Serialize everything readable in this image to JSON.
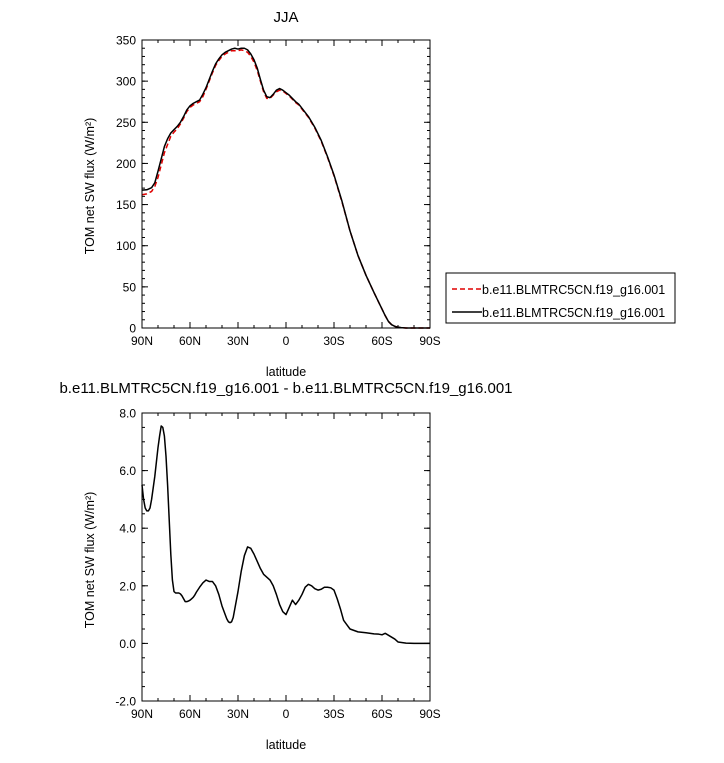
{
  "chart_data": [
    {
      "type": "line",
      "title": "JJA",
      "xlabel": "latitude",
      "ylabel": "TOM net SW flux (W/m²)",
      "xlim": [
        90,
        -90
      ],
      "ylim": [
        0,
        350
      ],
      "x_ticks": [
        90,
        60,
        30,
        0,
        -30,
        -60,
        -90
      ],
      "x_tick_labels": [
        "90N",
        "60N",
        "30N",
        "0",
        "30S",
        "60S",
        "90S"
      ],
      "y_ticks": [
        0,
        50,
        100,
        150,
        200,
        250,
        300,
        350
      ],
      "y_tick_labels": [
        "0",
        "50",
        "100",
        "150",
        "200",
        "250",
        "300",
        "350"
      ],
      "legend_position": "right",
      "series": [
        {
          "name": "b.e11.BLMTRC5CN.f19_g16.001",
          "color": "#e00000",
          "dash": "dashed",
          "x": [
            90,
            87,
            84,
            82,
            80,
            78,
            76,
            74,
            72,
            70,
            68,
            66,
            64,
            62,
            60,
            58,
            56,
            54,
            52,
            50,
            48,
            46,
            44,
            42,
            40,
            38,
            36,
            34,
            32,
            30,
            28,
            26,
            24,
            22,
            20,
            18,
            16,
            14,
            12,
            10,
            8,
            6,
            4,
            2,
            0,
            -2,
            -4,
            -6,
            -8,
            -10,
            -14,
            -18,
            -22,
            -26,
            -30,
            -35,
            -40,
            -45,
            -50,
            -55,
            -60,
            -62,
            -64,
            -66,
            -68,
            -70,
            -72,
            -75,
            -80,
            -85,
            -90
          ],
          "y": [
            162,
            163,
            166,
            172,
            183,
            198,
            213,
            223,
            233,
            238,
            242,
            248,
            255,
            263,
            268,
            271,
            273,
            275,
            281,
            290,
            300,
            310,
            319,
            325,
            330,
            333,
            335,
            337,
            337,
            337,
            338,
            337,
            335,
            330,
            323,
            313,
            300,
            287,
            279,
            279,
            283,
            287,
            289,
            288,
            285,
            282,
            278,
            274,
            271,
            266,
            256,
            243,
            227,
            207,
            185,
            153,
            118,
            88,
            64,
            43,
            23,
            15,
            8,
            4,
            2,
            1,
            0.5,
            0,
            0,
            0,
            0
          ]
        },
        {
          "name": "b.e11.BLMTRC5CN.f19_g16.001",
          "color": "#000000",
          "dash": "solid",
          "x": [
            90,
            87,
            84,
            82,
            80,
            78,
            76,
            74,
            72,
            70,
            68,
            66,
            64,
            62,
            60,
            58,
            56,
            54,
            52,
            50,
            48,
            46,
            44,
            42,
            40,
            38,
            36,
            34,
            32,
            30,
            28,
            26,
            24,
            22,
            20,
            18,
            16,
            14,
            12,
            10,
            8,
            6,
            4,
            2,
            0,
            -2,
            -4,
            -6,
            -8,
            -10,
            -14,
            -18,
            -22,
            -26,
            -30,
            -35,
            -40,
            -45,
            -50,
            -55,
            -60,
            -62,
            -64,
            -66,
            -68,
            -70,
            -72,
            -75,
            -80,
            -85,
            -90
          ],
          "y": [
            167.5,
            168,
            170.5,
            176.5,
            190.5,
            205.5,
            220.5,
            230,
            237,
            241,
            245,
            250,
            257,
            265,
            270,
            273,
            275,
            277,
            284,
            292,
            302,
            312,
            321,
            327,
            332,
            335,
            337,
            339,
            340,
            339,
            340,
            340,
            338,
            333,
            326,
            316,
            302,
            289,
            281,
            280,
            284,
            289,
            291,
            289,
            286,
            283,
            279,
            275,
            272,
            267,
            257,
            244,
            228,
            208,
            186,
            154,
            118,
            88,
            64,
            43,
            23,
            15,
            8,
            4,
            2,
            1,
            0.5,
            0,
            0,
            0,
            0
          ]
        }
      ]
    },
    {
      "type": "line",
      "title": "b.e11.BLMTRC5CN.f19_g16.001 - b.e11.BLMTRC5CN.f19_g16.001",
      "xlabel": "latitude",
      "ylabel": "TOM net SW flux (W/m²)",
      "xlim": [
        90,
        -90
      ],
      "ylim": [
        -2.0,
        8.0
      ],
      "x_ticks": [
        90,
        60,
        30,
        0,
        -30,
        -60,
        -90
      ],
      "x_tick_labels": [
        "90N",
        "60N",
        "30N",
        "0",
        "30S",
        "60S",
        "90S"
      ],
      "y_ticks": [
        -2.0,
        0.0,
        2.0,
        4.0,
        6.0,
        8.0
      ],
      "y_tick_labels": [
        "-2.0",
        "0.0",
        "2.0",
        "4.0",
        "6.0",
        "8.0"
      ],
      "series": [
        {
          "color": "#000000",
          "dash": "solid",
          "x": [
            90,
            89,
            88,
            87,
            86,
            85,
            84,
            83,
            82,
            81,
            80,
            79,
            78,
            77,
            76,
            75,
            74,
            73,
            72,
            71,
            70,
            69,
            68,
            67,
            66,
            65,
            64,
            63,
            62,
            61,
            60,
            59,
            58,
            57,
            56,
            54,
            52,
            50,
            48,
            46,
            44,
            42,
            40,
            38,
            37,
            36,
            35,
            34,
            33,
            32,
            30,
            28,
            26,
            24,
            22,
            20,
            18,
            16,
            14,
            12,
            10,
            8,
            6,
            4,
            2,
            0,
            -2,
            -4,
            -6,
            -8,
            -10,
            -12,
            -14,
            -16,
            -18,
            -20,
            -22,
            -24,
            -26,
            -28,
            -30,
            -32,
            -34,
            -36,
            -38,
            -40,
            -45,
            -50,
            -55,
            -58,
            -60,
            -62,
            -65,
            -68,
            -70,
            -75,
            -80,
            -85,
            -90
          ],
          "y": [
            5.5,
            5.0,
            4.7,
            4.6,
            4.6,
            4.7,
            5.0,
            5.4,
            5.8,
            6.3,
            6.8,
            7.2,
            7.55,
            7.5,
            7.2,
            6.5,
            5.5,
            4.3,
            3.1,
            2.2,
            1.8,
            1.75,
            1.75,
            1.75,
            1.72,
            1.65,
            1.55,
            1.45,
            1.45,
            1.47,
            1.5,
            1.55,
            1.6,
            1.68,
            1.78,
            1.95,
            2.1,
            2.2,
            2.15,
            2.15,
            2.0,
            1.7,
            1.3,
            1.0,
            0.85,
            0.75,
            0.72,
            0.75,
            0.9,
            1.2,
            1.8,
            2.5,
            3.05,
            3.35,
            3.3,
            3.1,
            2.85,
            2.6,
            2.4,
            2.3,
            2.2,
            2.0,
            1.7,
            1.35,
            1.1,
            1.0,
            1.25,
            1.5,
            1.35,
            1.5,
            1.7,
            1.95,
            2.05,
            2.0,
            1.9,
            1.85,
            1.88,
            1.95,
            1.95,
            1.93,
            1.85,
            1.55,
            1.2,
            0.8,
            0.65,
            0.5,
            0.4,
            0.37,
            0.33,
            0.32,
            0.3,
            0.35,
            0.25,
            0.15,
            0.05,
            0.01,
            0.0,
            0.0,
            0.0
          ]
        }
      ]
    }
  ]
}
